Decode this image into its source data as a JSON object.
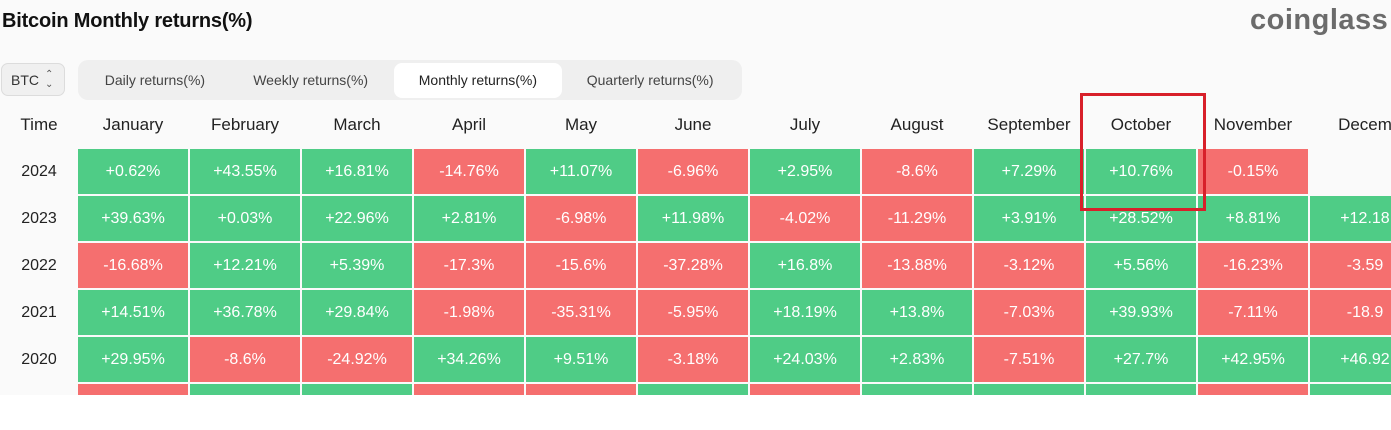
{
  "header": {
    "title": "Bitcoin Monthly returns(%)",
    "brand": "coinglass"
  },
  "coin_select": {
    "value": "BTC",
    "icon": "updown-chevron-icon"
  },
  "tabs": [
    {
      "label": "Daily returns(%)",
      "active": false
    },
    {
      "label": "Weekly returns(%)",
      "active": false
    },
    {
      "label": "Monthly returns(%)",
      "active": true
    },
    {
      "label": "Quarterly returns(%)",
      "active": false
    }
  ],
  "table": {
    "time_header": "Time",
    "columns": [
      "January",
      "February",
      "March",
      "April",
      "May",
      "June",
      "July",
      "August",
      "September",
      "October",
      "November",
      "Decem"
    ],
    "rows": [
      {
        "year": "2024",
        "values": [
          "+0.62%",
          "+43.55%",
          "+16.81%",
          "-14.76%",
          "+11.07%",
          "-6.96%",
          "+2.95%",
          "-8.6%",
          "+7.29%",
          "+10.76%",
          "-0.15%",
          ""
        ]
      },
      {
        "year": "2023",
        "values": [
          "+39.63%",
          "+0.03%",
          "+22.96%",
          "+2.81%",
          "-6.98%",
          "+11.98%",
          "-4.02%",
          "-11.29%",
          "+3.91%",
          "+28.52%",
          "+8.81%",
          "+12.18"
        ]
      },
      {
        "year": "2022",
        "values": [
          "-16.68%",
          "+12.21%",
          "+5.39%",
          "-17.3%",
          "-15.6%",
          "-37.28%",
          "+16.8%",
          "-13.88%",
          "-3.12%",
          "+5.56%",
          "-16.23%",
          "-3.59"
        ]
      },
      {
        "year": "2021",
        "values": [
          "+14.51%",
          "+36.78%",
          "+29.84%",
          "-1.98%",
          "-35.31%",
          "-5.95%",
          "+18.19%",
          "+13.8%",
          "-7.03%",
          "+39.93%",
          "-7.11%",
          "-18.9"
        ]
      },
      {
        "year": "2020",
        "values": [
          "+29.95%",
          "-8.6%",
          "-24.92%",
          "+34.26%",
          "+9.51%",
          "-3.18%",
          "+24.03%",
          "+2.83%",
          "-7.51%",
          "+27.7%",
          "+42.95%",
          "+46.92"
        ]
      }
    ],
    "partial_row_signs": [
      "neg",
      "pos",
      "pos",
      "neg",
      "neg",
      "pos",
      "neg",
      "pos",
      "pos",
      "pos",
      "neg",
      "pos"
    ]
  },
  "colors": {
    "positive": "#4fcc86",
    "negative": "#f56f6f",
    "highlight": "#d8202a"
  }
}
